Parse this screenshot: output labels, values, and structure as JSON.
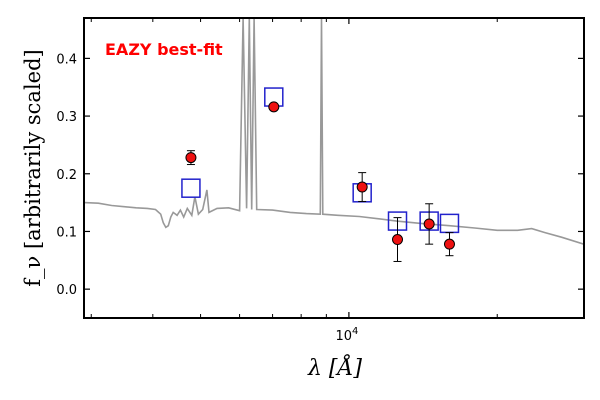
{
  "chart_data": {
    "type": "scatter",
    "title": "",
    "xlabel": "λ [Å]",
    "ylabel": "f_ν [arbitrarily scaled]",
    "xscale": "log",
    "xlim": [
      2900,
      30000
    ],
    "ylim": [
      -0.05,
      0.47
    ],
    "yticks": [
      0.0,
      0.1,
      0.2,
      0.3,
      0.4
    ],
    "ytick_labels": [
      "0.0",
      "0.1",
      "0.2",
      "0.3",
      "0.4"
    ],
    "xtick_labels": [
      {
        "value": 10000,
        "base": "10",
        "exp": "4"
      }
    ],
    "grid": false,
    "annotation": {
      "text": "EAZY best-fit",
      "color": "#ff0000"
    },
    "series": [
      {
        "kind": "observed",
        "marker": "circle",
        "color": "#ee1111",
        "points": [
          {
            "x": 4780,
            "y": 0.228,
            "err": 0.012
          },
          {
            "x": 7040,
            "y": 0.316,
            "err": 0.005
          },
          {
            "x": 10640,
            "y": 0.177,
            "err": 0.025
          },
          {
            "x": 12550,
            "y": 0.086,
            "err": 0.038
          },
          {
            "x": 14550,
            "y": 0.113,
            "err": 0.035
          },
          {
            "x": 16000,
            "y": 0.078,
            "err": 0.02
          }
        ]
      },
      {
        "kind": "model-photometry",
        "marker": "square",
        "color": "#2222cc",
        "points": [
          {
            "x": 4780,
            "y": 0.175
          },
          {
            "x": 7040,
            "y": 0.333
          },
          {
            "x": 10640,
            "y": 0.167
          },
          {
            "x": 12550,
            "y": 0.118
          },
          {
            "x": 14550,
            "y": 0.118
          },
          {
            "x": 16000,
            "y": 0.114
          }
        ]
      },
      {
        "kind": "template-spectrum",
        "marker": "line",
        "color": "#999999",
        "points": [
          {
            "x": 2900,
            "y": 0.15
          },
          {
            "x": 3100,
            "y": 0.149
          },
          {
            "x": 3300,
            "y": 0.145
          },
          {
            "x": 3500,
            "y": 0.143
          },
          {
            "x": 3700,
            "y": 0.141
          },
          {
            "x": 3900,
            "y": 0.14
          },
          {
            "x": 4050,
            "y": 0.138
          },
          {
            "x": 4150,
            "y": 0.13
          },
          {
            "x": 4200,
            "y": 0.115
          },
          {
            "x": 4250,
            "y": 0.107
          },
          {
            "x": 4300,
            "y": 0.11
          },
          {
            "x": 4350,
            "y": 0.125
          },
          {
            "x": 4400,
            "y": 0.133
          },
          {
            "x": 4480,
            "y": 0.128
          },
          {
            "x": 4550,
            "y": 0.137
          },
          {
            "x": 4620,
            "y": 0.125
          },
          {
            "x": 4700,
            "y": 0.14
          },
          {
            "x": 4800,
            "y": 0.128
          },
          {
            "x": 4870,
            "y": 0.16
          },
          {
            "x": 4950,
            "y": 0.13
          },
          {
            "x": 5050,
            "y": 0.138
          },
          {
            "x": 5150,
            "y": 0.172
          },
          {
            "x": 5200,
            "y": 0.133
          },
          {
            "x": 5400,
            "y": 0.14
          },
          {
            "x": 5700,
            "y": 0.141
          },
          {
            "x": 6000,
            "y": 0.136
          },
          {
            "x": 6100,
            "y": 0.47
          },
          {
            "x": 6200,
            "y": 0.14
          },
          {
            "x": 6280,
            "y": 0.47
          },
          {
            "x": 6350,
            "y": 0.138
          },
          {
            "x": 6420,
            "y": 0.47
          },
          {
            "x": 6500,
            "y": 0.138
          },
          {
            "x": 7000,
            "y": 0.137
          },
          {
            "x": 7600,
            "y": 0.133
          },
          {
            "x": 8200,
            "y": 0.131
          },
          {
            "x": 8750,
            "y": 0.13
          },
          {
            "x": 8800,
            "y": 0.47
          },
          {
            "x": 8850,
            "y": 0.13
          },
          {
            "x": 9500,
            "y": 0.128
          },
          {
            "x": 10500,
            "y": 0.126
          },
          {
            "x": 11500,
            "y": 0.122
          },
          {
            "x": 12500,
            "y": 0.118
          },
          {
            "x": 14000,
            "y": 0.114
          },
          {
            "x": 16000,
            "y": 0.11
          },
          {
            "x": 18000,
            "y": 0.106
          },
          {
            "x": 20000,
            "y": 0.102
          },
          {
            "x": 22000,
            "y": 0.102
          },
          {
            "x": 23500,
            "y": 0.105
          },
          {
            "x": 25000,
            "y": 0.098
          },
          {
            "x": 27000,
            "y": 0.09
          },
          {
            "x": 30000,
            "y": 0.078
          }
        ]
      }
    ]
  }
}
